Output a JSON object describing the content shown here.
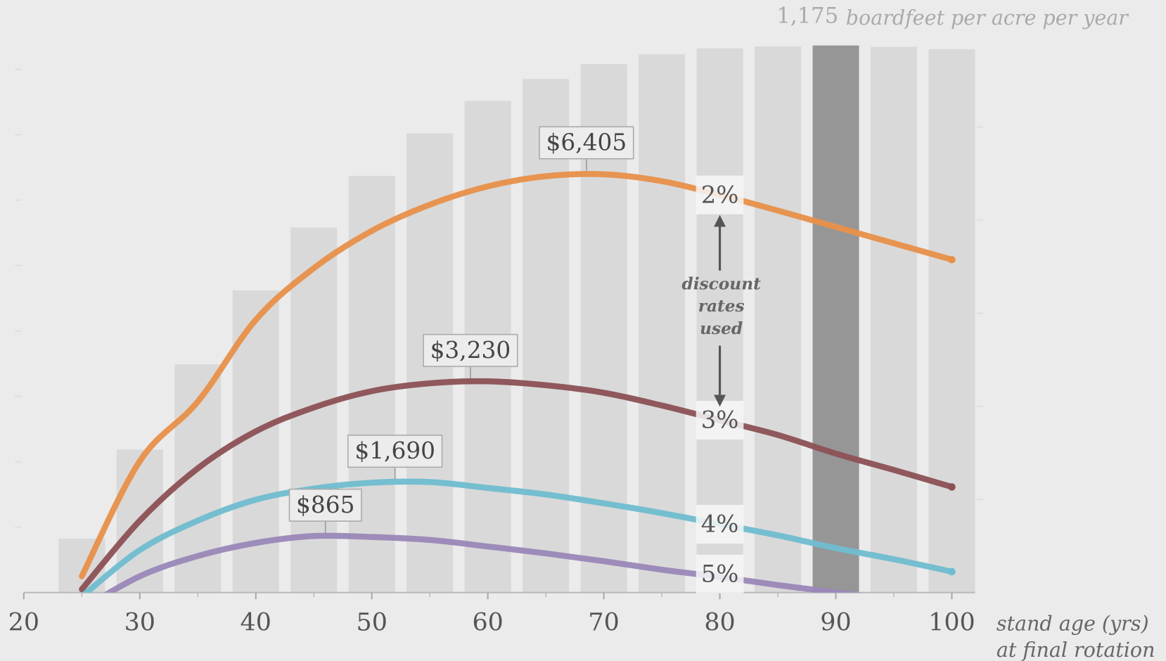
{
  "chart_data": {
    "type": "bar-line",
    "xlim": [
      20,
      102
    ],
    "xticks": [
      20,
      30,
      40,
      50,
      60,
      70,
      80,
      90,
      100
    ],
    "xminor": [
      25,
      35,
      45,
      55,
      65,
      75,
      85,
      95
    ],
    "x_label": [
      "stand age (yrs)",
      "at final rotation"
    ],
    "ylim": [
      0,
      8400
    ],
    "yticks": [
      1000,
      2000,
      3000,
      4000,
      5000,
      6000,
      7000,
      8000
    ],
    "y2lim": [
      0,
      1180
    ],
    "y2ticks": [
      200,
      400,
      600,
      800,
      1000
    ],
    "bars": {
      "axis": "y2",
      "unit": "boardfeet per acre per year",
      "color": "#d9d9d9",
      "highlight_color": "#969696",
      "highlight_index": 13,
      "x": [
        25,
        30,
        35,
        40,
        45,
        50,
        55,
        60,
        65,
        70,
        75,
        80,
        85,
        90,
        95,
        100
      ],
      "values": [
        116,
        307,
        490,
        649,
        784,
        895,
        986,
        1056,
        1103,
        1135,
        1156,
        1169,
        1173,
        1175,
        1172,
        1167
      ],
      "value_labels": [
        null,
        null,
        null,
        null,
        null,
        null,
        null,
        null,
        null,
        null,
        null,
        null,
        null,
        "1,175",
        null,
        null
      ]
    },
    "x": [
      25,
      30,
      35,
      40,
      45,
      50,
      55,
      60,
      65,
      70,
      75,
      80,
      85,
      90,
      95,
      100
    ],
    "series": [
      {
        "name": "2%",
        "color": "#e8904a",
        "values": [
          250,
          2010,
          2920,
          4170,
          4960,
          5530,
          5930,
          6210,
          6365,
          6395,
          6290,
          6080,
          5840,
          5590,
          5340,
          5090
        ],
        "peak": {
          "x": 68.5,
          "value": 6405,
          "label": "$6,405"
        }
      },
      {
        "name": "3%",
        "color": "#8c5155",
        "values": [
          50,
          1100,
          1900,
          2465,
          2830,
          3080,
          3200,
          3230,
          3170,
          3055,
          2860,
          2635,
          2410,
          2125,
          1875,
          1615
        ],
        "peak": {
          "x": 58.5,
          "value": 3230,
          "label": "$3,230"
        }
      },
      {
        "name": "4%",
        "color": "#6fbdd0",
        "values": [
          -60,
          650,
          1100,
          1420,
          1590,
          1680,
          1690,
          1600,
          1500,
          1365,
          1215,
          1045,
          875,
          680,
          510,
          320
        ],
        "peak": {
          "x": 52,
          "value": 1690,
          "label": "$1,690"
        }
      },
      {
        "name": "5%",
        "color": "#9a88b8",
        "values": [
          -250,
          250,
          560,
          760,
          865,
          850,
          805,
          705,
          600,
          480,
          350,
          240,
          115,
          0,
          -100,
          -200
        ],
        "peak": {
          "x": 46,
          "value": 865,
          "label": "$865"
        }
      }
    ],
    "series_label_x": 80,
    "annotation": [
      "discount",
      "rates",
      "used"
    ]
  }
}
